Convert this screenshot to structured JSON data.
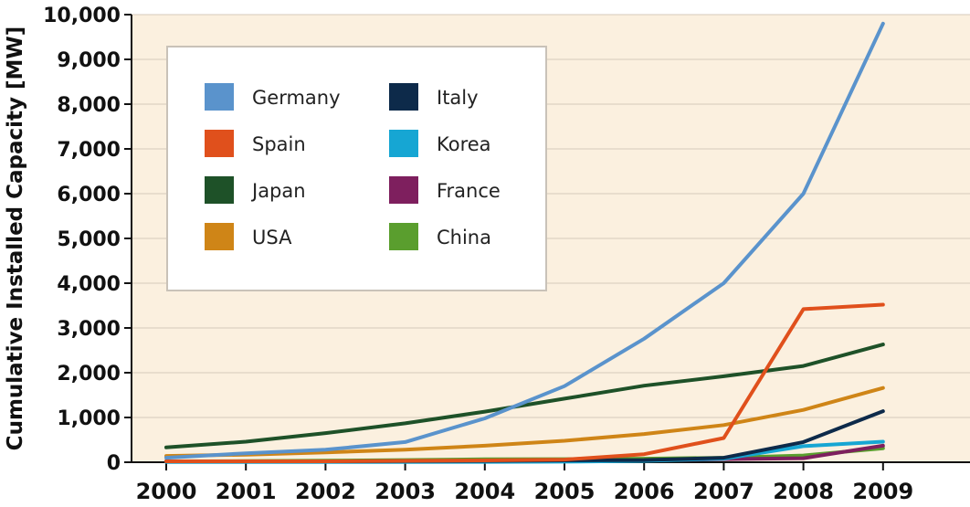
{
  "chart_data": {
    "type": "line",
    "title": "",
    "xlabel": "",
    "ylabel": "Cumulative Installed Capacity [MW]",
    "x": [
      "2000",
      "2001",
      "2002",
      "2003",
      "2004",
      "2005",
      "2006",
      "2007",
      "2008",
      "2009"
    ],
    "ylim": [
      0,
      10000
    ],
    "yticks": [
      "0",
      "1,000",
      "2,000",
      "3,000",
      "4,000",
      "5,000",
      "6,000",
      "7,000",
      "8,000",
      "9,000",
      "10,000"
    ],
    "grid": "horizontal",
    "legend_position": "top-left",
    "background_color": "#fbf0df",
    "series": [
      {
        "name": "Germany",
        "color": "#5a93cc",
        "values": [
          100,
          200,
          280,
          450,
          980,
          1700,
          2760,
          4000,
          6000,
          9800
        ]
      },
      {
        "name": "Spain",
        "color": "#e0501c",
        "values": [
          20,
          20,
          20,
          30,
          40,
          60,
          180,
          540,
          3420,
          3520
        ]
      },
      {
        "name": "Japan",
        "color": "#1e5128",
        "values": [
          330,
          460,
          650,
          870,
          1130,
          1420,
          1710,
          1920,
          2150,
          2630
        ]
      },
      {
        "name": "USA",
        "color": "#cf8517",
        "values": [
          140,
          170,
          220,
          280,
          370,
          480,
          630,
          830,
          1170,
          1660
        ]
      },
      {
        "name": "Italy",
        "color": "#0d2a4a",
        "values": [
          20,
          20,
          20,
          25,
          30,
          40,
          50,
          100,
          450,
          1140
        ]
      },
      {
        "name": "Korea",
        "color": "#16a6d3",
        "values": [
          5,
          5,
          5,
          6,
          8,
          12,
          30,
          80,
          360,
          460
        ]
      },
      {
        "name": "France",
        "color": "#7e1f5e",
        "values": [
          10,
          10,
          10,
          12,
          15,
          20,
          40,
          70,
          90,
          370
        ]
      },
      {
        "name": "China",
        "color": "#5a9e2e",
        "values": [
          20,
          25,
          35,
          50,
          65,
          70,
          80,
          100,
          150,
          310
        ]
      }
    ]
  }
}
